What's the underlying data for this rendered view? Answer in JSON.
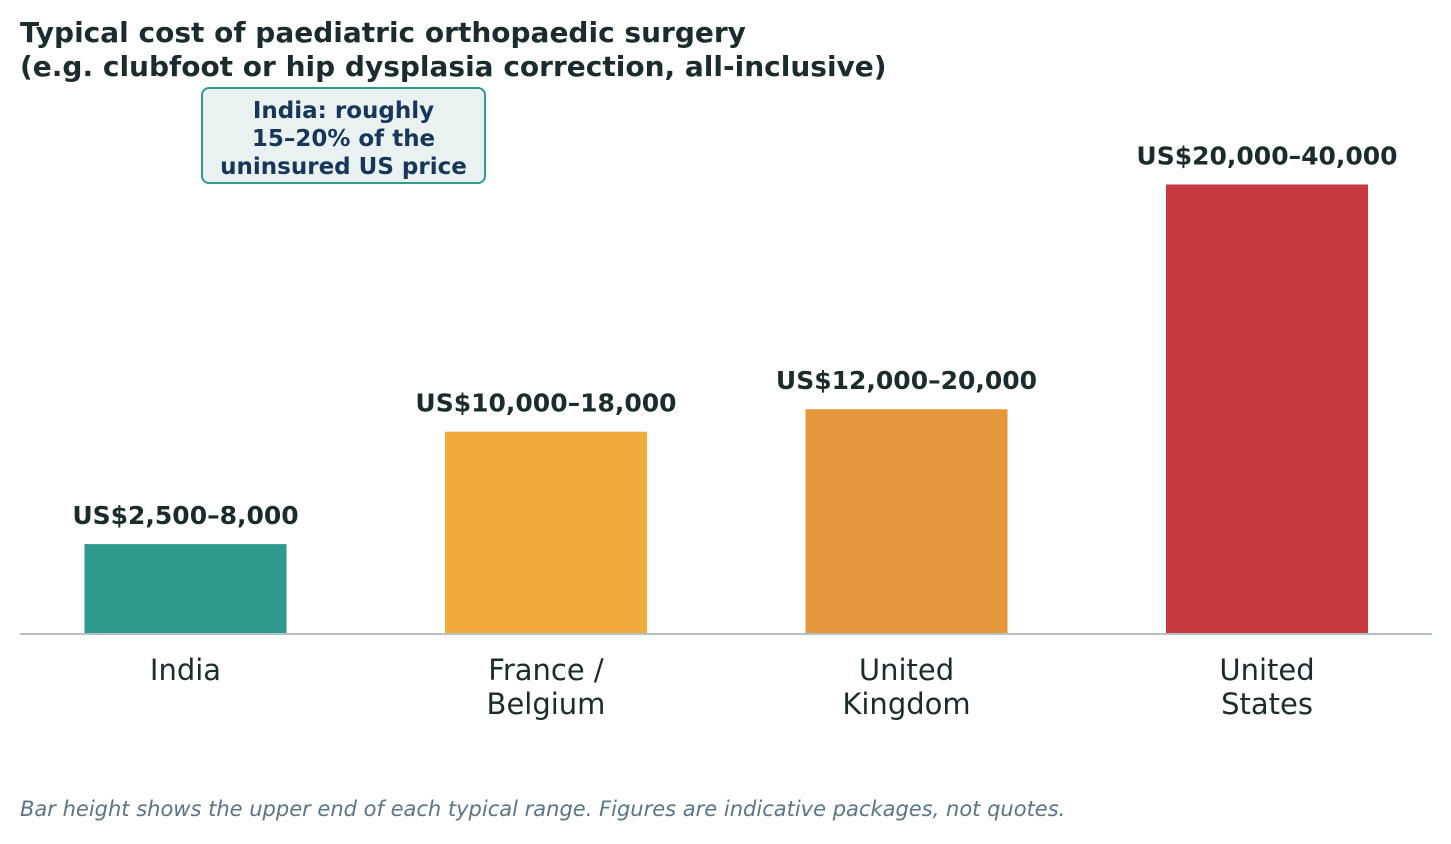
{
  "chart_data": {
    "type": "bar",
    "title_lines": [
      "Typical cost of paediatric orthopaedic surgery",
      "(e.g. clubfoot or hip dysplasia correction, all-inclusive)"
    ],
    "categories": [
      [
        "India"
      ],
      [
        "France /",
        "Belgium"
      ],
      [
        "United",
        "Kingdom"
      ],
      [
        "United",
        "States"
      ]
    ],
    "values": [
      8000,
      18000,
      20000,
      40000
    ],
    "ranges": [
      [
        2500,
        8000
      ],
      [
        10000,
        18000
      ],
      [
        12000,
        20000
      ],
      [
        20000,
        40000
      ]
    ],
    "data_labels": [
      "US$2,500–8,000",
      "US$10,000–18,000",
      "US$12,000–20,000",
      "US$20,000–40,000"
    ],
    "colors": [
      "#2e9a8c",
      "#f0a93b",
      "#e6963b",
      "#c83a3e"
    ],
    "ylim": [
      0,
      42000
    ],
    "annotation_lines": [
      "India: roughly",
      "15–20% of the",
      "uninsured US price"
    ],
    "footnote": "Bar height shows the upper end of each typical range. Figures are indicative packages, not quotes."
  }
}
